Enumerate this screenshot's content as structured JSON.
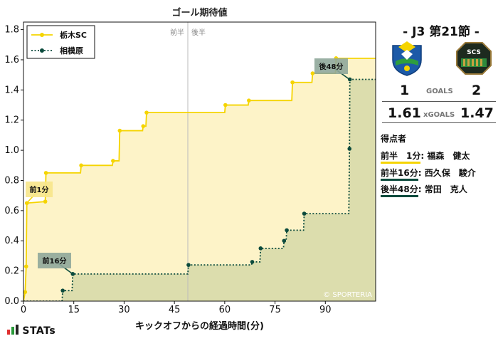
{
  "chart_data": {
    "type": "line",
    "title": "ゴール期待値",
    "xlabel": "キックオフからの経過時間(分)",
    "ylabel": "",
    "xlim": [
      0,
      105
    ],
    "ylim": [
      0,
      1.85
    ],
    "xticks": [
      0,
      15,
      30,
      45,
      60,
      75,
      90
    ],
    "yticks": [
      0.0,
      0.2,
      0.4,
      0.6,
      0.8,
      1.0,
      1.2,
      1.4,
      1.6,
      1.8
    ],
    "half_labels": [
      "前半",
      "後半"
    ],
    "half_line_x": 49,
    "watermark": "© SPORTERIA",
    "legend_position": "top-left",
    "series": [
      {
        "name": "栃木SC",
        "color": "#f5d400",
        "fill": "#fdf3c8",
        "line_style": "solid",
        "points": [
          [
            0,
            0.0
          ],
          [
            0.5,
            0.06
          ],
          [
            0.8,
            0.23
          ],
          [
            1,
            0.65
          ],
          [
            6.5,
            0.66
          ],
          [
            6.7,
            0.85
          ],
          [
            17,
            0.85
          ],
          [
            17.2,
            0.9
          ],
          [
            26.5,
            0.9
          ],
          [
            26.7,
            0.93
          ],
          [
            28.5,
            0.93
          ],
          [
            28.7,
            1.13
          ],
          [
            35.5,
            1.13
          ],
          [
            35.7,
            1.16
          ],
          [
            36.5,
            1.16
          ],
          [
            36.7,
            1.25
          ],
          [
            60,
            1.25
          ],
          [
            60.2,
            1.3
          ],
          [
            67,
            1.3
          ],
          [
            67.2,
            1.33
          ],
          [
            80,
            1.33
          ],
          [
            80.2,
            1.45
          ],
          [
            86,
            1.45
          ],
          [
            86.2,
            1.51
          ],
          [
            93,
            1.51
          ],
          [
            93.2,
            1.61
          ],
          [
            105,
            1.61
          ]
        ]
      },
      {
        "name": "相模原",
        "color": "#0b4a3c",
        "fill": "#d6d8a8",
        "line_style": "dotted",
        "points": [
          [
            0,
            0.0
          ],
          [
            11.5,
            0.0
          ],
          [
            11.7,
            0.07
          ],
          [
            14.5,
            0.07
          ],
          [
            14.7,
            0.18
          ],
          [
            49,
            0.18
          ],
          [
            49.2,
            0.24
          ],
          [
            68,
            0.24
          ],
          [
            68.2,
            0.26
          ],
          [
            70.5,
            0.26
          ],
          [
            70.7,
            0.35
          ],
          [
            77.5,
            0.35
          ],
          [
            77.7,
            0.4
          ],
          [
            78.3,
            0.4
          ],
          [
            78.5,
            0.47
          ],
          [
            83.5,
            0.47
          ],
          [
            83.7,
            0.58
          ],
          [
            97,
            0.58
          ],
          [
            97.2,
            1.01
          ],
          [
            97.3,
            1.47
          ],
          [
            105,
            1.47
          ]
        ]
      }
    ],
    "annotations": [
      {
        "label": "前1分",
        "x": 1,
        "y": 0.65,
        "team": 0
      },
      {
        "label": "前16分",
        "x": 14.7,
        "y": 0.18,
        "team": 1
      },
      {
        "label": "後48分",
        "x": 97.2,
        "y": 1.47,
        "team": 1
      }
    ]
  },
  "match": {
    "title": "- J3 第21節 -",
    "home_goals": "1",
    "away_goals": "2",
    "goals_label": "GOALS",
    "home_xg": "1.61",
    "away_xg": "1.47",
    "xg_label": "xGOALS",
    "away_crest_text": "SCS"
  },
  "scorers": {
    "title": "得点者",
    "items": [
      {
        "time": "前半　1分",
        "name": "福森　健太",
        "team_color": "#f5d400"
      },
      {
        "time": "前半16分",
        "name": "西久保　駿介",
        "team_color": "#0b4a3c"
      },
      {
        "time": "後半48分",
        "name": "常田　克人",
        "team_color": "#0b4a3c"
      }
    ]
  },
  "footer": {
    "brand": "STATs"
  }
}
